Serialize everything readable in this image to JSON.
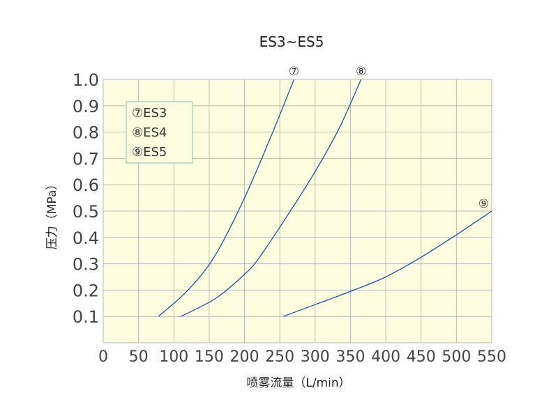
{
  "chart_data": {
    "type": "line",
    "title": "ES3~ES5",
    "xlabel": "喷雾流量（L/min）",
    "ylabel": "压力（MPa）",
    "xlim": [
      0,
      550
    ],
    "ylim": [
      0,
      1.0
    ],
    "x_ticks": [
      "0",
      "50",
      "100",
      "150",
      "200",
      "250",
      "300",
      "350",
      "400",
      "450",
      "500",
      "550"
    ],
    "y_ticks": [
      "0.1",
      "0.2",
      "0.3",
      "0.4",
      "0.5",
      "0.6",
      "0.7",
      "0.8",
      "0.9",
      "1.0"
    ],
    "grid": true,
    "legend_position": "top-left",
    "legend": [
      "⑦ES3",
      "⑧ES4",
      "⑨ES5"
    ],
    "series": [
      {
        "name": "⑦ES3",
        "marker": "⑦",
        "color": "#1d4fb0",
        "points": [
          [
            78,
            0.1
          ],
          [
            120,
            0.2
          ],
          [
            158,
            0.33
          ],
          [
            200,
            0.55
          ],
          [
            240,
            0.8
          ],
          [
            270,
            1.0
          ]
        ]
      },
      {
        "name": "⑧ES4",
        "marker": "⑧",
        "color": "#1d4fb0",
        "points": [
          [
            110,
            0.1
          ],
          [
            160,
            0.17
          ],
          [
            200,
            0.26
          ],
          [
            220,
            0.32
          ],
          [
            260,
            0.48
          ],
          [
            300,
            0.65
          ],
          [
            335,
            0.82
          ],
          [
            365,
            1.0
          ]
        ]
      },
      {
        "name": "⑨ES5",
        "marker": "⑨",
        "color": "#1d4fb0",
        "points": [
          [
            255,
            0.1
          ],
          [
            300,
            0.145
          ],
          [
            350,
            0.195
          ],
          [
            400,
            0.25
          ],
          [
            450,
            0.325
          ],
          [
            500,
            0.41
          ],
          [
            550,
            0.5
          ]
        ]
      }
    ],
    "colors": {
      "plot_background": "#fdfde0",
      "line": "#1d4fb0",
      "grid": "#b9b9b9",
      "legend_border": "#7fc4ad"
    }
  }
}
